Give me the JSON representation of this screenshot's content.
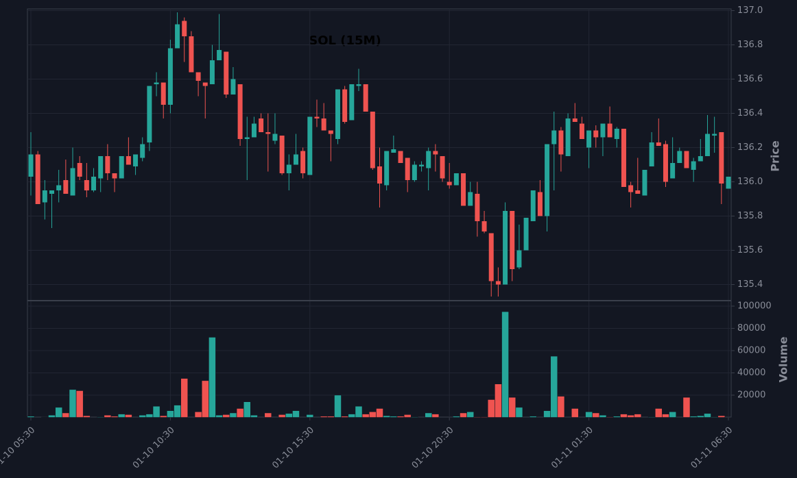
{
  "chart_data": [
    {
      "type": "candlestick",
      "title": "SOL (15M)",
      "y_label": "Price",
      "up_color": "#26a69a",
      "down_color": "#ef5350",
      "grid": true,
      "x": [
        "01-10 05:30",
        null,
        null,
        null,
        null,
        null,
        null,
        null,
        null,
        null,
        null,
        null,
        null,
        null,
        null,
        null,
        null,
        null,
        null,
        null,
        "01-10 10:30",
        null,
        null,
        null,
        null,
        null,
        null,
        null,
        null,
        null,
        null,
        null,
        null,
        null,
        null,
        null,
        null,
        null,
        null,
        null,
        "01-10 15:30",
        null,
        null,
        null,
        null,
        null,
        null,
        null,
        null,
        null,
        null,
        null,
        null,
        null,
        null,
        null,
        null,
        null,
        null,
        null,
        "01-10 20:30",
        null,
        null,
        null,
        null,
        null,
        null,
        null,
        null,
        null,
        null,
        null,
        null,
        null,
        null,
        null,
        null,
        null,
        null,
        null,
        "01-11 01:30",
        null,
        null,
        null,
        null,
        null,
        null,
        null,
        null,
        null,
        null,
        null,
        null,
        null,
        null,
        null,
        null,
        null,
        null,
        null,
        "01-11 06:30"
      ],
      "open": [
        136.03,
        136.16,
        135.88,
        135.93,
        135.95,
        136.01,
        135.92,
        136.11,
        136.01,
        135.95,
        136.02,
        136.15,
        136.05,
        136.02,
        136.15,
        136.09,
        136.14,
        136.23,
        136.57,
        136.58,
        136.45,
        136.78,
        136.94,
        136.85,
        136.64,
        136.58,
        136.57,
        136.71,
        136.76,
        136.51,
        136.57,
        136.25,
        136.26,
        136.37,
        136.29,
        136.24,
        136.27,
        136.05,
        136.1,
        136.18,
        136.04,
        136.38,
        136.37,
        136.3,
        136.25,
        136.54,
        136.36,
        136.56,
        136.57,
        136.41,
        136.09,
        135.98,
        136.17,
        136.18,
        136.14,
        136.01,
        136.09,
        136.08,
        136.18,
        136.15,
        136.0,
        135.98,
        136.05,
        135.86,
        135.93,
        135.77,
        135.7,
        135.42,
        135.4,
        135.83,
        135.5,
        135.6,
        135.77,
        135.94,
        135.8,
        136.22,
        136.3,
        136.15,
        136.37,
        136.34,
        136.2,
        136.3,
        136.26,
        136.34,
        136.25,
        136.31,
        135.98,
        135.95,
        135.92,
        136.09,
        136.23,
        136.22,
        136.02,
        136.11,
        136.18,
        136.07,
        136.12,
        136.15,
        136.27,
        136.29,
        135.96
      ],
      "high": [
        136.29,
        136.18,
        136.01,
        135.95,
        136.07,
        136.13,
        136.2,
        136.15,
        136.11,
        136.08,
        136.15,
        136.22,
        136.05,
        136.15,
        136.26,
        136.16,
        136.26,
        136.56,
        136.64,
        136.58,
        136.83,
        136.99,
        136.96,
        136.88,
        136.64,
        136.58,
        136.8,
        136.98,
        136.76,
        136.67,
        136.57,
        136.38,
        136.38,
        136.4,
        136.4,
        136.4,
        136.27,
        136.16,
        136.28,
        136.2,
        136.38,
        136.48,
        136.46,
        136.3,
        136.54,
        136.56,
        136.57,
        136.66,
        136.57,
        136.41,
        136.2,
        136.18,
        136.27,
        136.18,
        136.14,
        136.12,
        136.12,
        136.2,
        136.22,
        136.15,
        136.11,
        136.05,
        136.05,
        136.0,
        136.0,
        135.83,
        135.7,
        135.5,
        135.88,
        135.83,
        135.75,
        135.79,
        135.95,
        136.01,
        136.22,
        136.41,
        136.32,
        136.4,
        136.46,
        136.38,
        136.3,
        136.33,
        136.34,
        136.44,
        136.32,
        136.31,
        136.0,
        136.14,
        136.07,
        136.29,
        136.37,
        136.24,
        136.26,
        136.2,
        136.18,
        136.14,
        136.25,
        136.39,
        136.38,
        136.29,
        136.03
      ],
      "low": [
        135.92,
        135.87,
        135.78,
        135.73,
        135.88,
        135.93,
        135.92,
        136.01,
        135.91,
        135.94,
        135.94,
        136.01,
        135.94,
        136.02,
        136.1,
        136.04,
        136.12,
        136.18,
        136.5,
        136.37,
        136.4,
        136.78,
        136.7,
        136.64,
        136.5,
        136.37,
        136.57,
        136.71,
        136.49,
        136.51,
        136.21,
        136.01,
        136.26,
        136.29,
        136.06,
        136.22,
        136.04,
        135.95,
        136.1,
        136.02,
        136.04,
        136.32,
        136.3,
        136.12,
        136.22,
        136.34,
        136.36,
        136.53,
        136.41,
        136.07,
        135.85,
        135.95,
        136.17,
        136.11,
        135.94,
        136.0,
        136.06,
        135.95,
        136.06,
        136.0,
        135.96,
        135.98,
        135.86,
        135.86,
        135.68,
        135.7,
        135.33,
        135.33,
        135.4,
        135.42,
        135.49,
        135.6,
        135.77,
        135.8,
        135.71,
        135.95,
        136.06,
        136.15,
        136.35,
        136.25,
        136.08,
        136.2,
        136.15,
        136.26,
        136.2,
        135.97,
        135.85,
        135.93,
        135.92,
        136.09,
        136.21,
        135.97,
        136.02,
        136.11,
        136.08,
        136.0,
        136.12,
        136.15,
        136.17,
        135.87,
        135.96
      ],
      "close": [
        136.16,
        135.87,
        135.95,
        135.95,
        135.98,
        135.93,
        136.08,
        136.03,
        135.95,
        136.03,
        136.15,
        136.05,
        136.02,
        136.15,
        136.1,
        136.16,
        136.22,
        136.56,
        136.58,
        136.45,
        136.78,
        136.92,
        136.85,
        136.64,
        136.59,
        136.56,
        136.71,
        136.77,
        136.51,
        136.6,
        136.25,
        136.26,
        136.34,
        136.29,
        136.28,
        136.28,
        136.05,
        136.1,
        136.16,
        136.05,
        136.38,
        136.37,
        136.3,
        136.28,
        136.54,
        136.35,
        136.57,
        136.57,
        136.41,
        136.08,
        135.99,
        136.18,
        136.19,
        136.11,
        136.01,
        136.1,
        136.1,
        136.18,
        136.16,
        136.02,
        135.98,
        136.05,
        135.86,
        135.94,
        135.77,
        135.71,
        135.42,
        135.4,
        135.83,
        135.49,
        135.6,
        135.79,
        135.95,
        135.8,
        136.22,
        136.3,
        136.16,
        136.37,
        136.35,
        136.25,
        136.3,
        136.26,
        136.34,
        136.26,
        136.31,
        135.97,
        135.94,
        135.93,
        136.07,
        136.23,
        136.21,
        136.0,
        136.11,
        136.18,
        136.08,
        136.12,
        136.15,
        136.28,
        136.28,
        135.99,
        136.03
      ],
      "ylim": [
        135.31,
        137.01
      ],
      "yticks": [
        135.4,
        135.6,
        135.8,
        {
          "value": 136,
          "label": "136.0"
        },
        136.2,
        136.4,
        136.6,
        136.8,
        {
          "value": 137,
          "label": "137.0"
        }
      ]
    },
    {
      "type": "bar",
      "y_label": "Volume",
      "values": [
        1000,
        0,
        300,
        2000,
        9000,
        4000,
        25000,
        24000,
        1500,
        0,
        500,
        2000,
        1000,
        3000,
        2500,
        0,
        2000,
        3000,
        10000,
        1500,
        6000,
        11000,
        35000,
        0,
        5000,
        33000,
        72000,
        2000,
        2500,
        4000,
        8000,
        14000,
        2000,
        0,
        4000,
        0,
        2500,
        3500,
        6000,
        0,
        2500,
        0,
        1000,
        1000,
        20000,
        1000,
        3000,
        10000,
        3000,
        5000,
        8000,
        1500,
        1000,
        1000,
        2500,
        500,
        0,
        4000,
        3000,
        0,
        0,
        1000,
        4000,
        5000,
        500,
        500,
        16000,
        30000,
        95000,
        18000,
        9000,
        0,
        1000,
        0,
        6000,
        55000,
        19000,
        0,
        8000,
        0,
        5000,
        4000,
        2000,
        500,
        1000,
        3000,
        2000,
        3000,
        0,
        500,
        8000,
        3000,
        5000,
        0,
        18000,
        1000,
        1500,
        3500,
        500,
        1500,
        0
      ],
      "ylim": [
        0,
        104300
      ],
      "yticks": [
        20000,
        40000,
        60000,
        80000,
        100000
      ]
    }
  ]
}
